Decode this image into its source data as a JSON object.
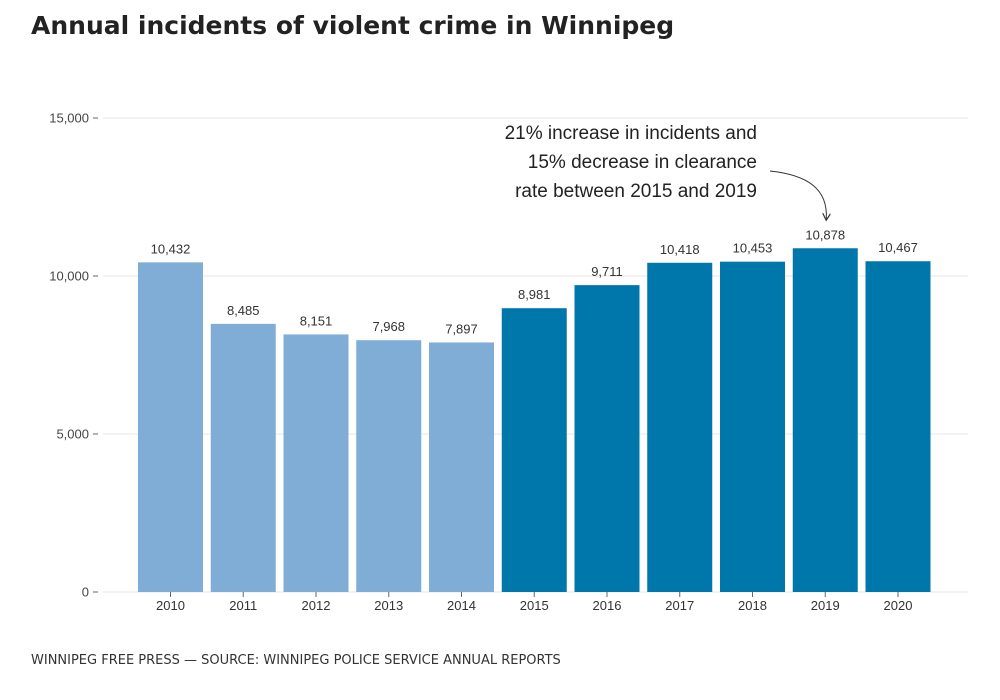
{
  "title": "Annual incidents of violent crime in Winnipeg",
  "footer": "WINNIPEG FREE PRESS — SOURCE: WINNIPEG POLICE SERVICE ANNUAL REPORTS",
  "chart_data": {
    "type": "bar",
    "categories": [
      "2010",
      "2011",
      "2012",
      "2013",
      "2014",
      "2015",
      "2016",
      "2017",
      "2018",
      "2019",
      "2020"
    ],
    "values": [
      10432,
      8485,
      8151,
      7968,
      7897,
      8981,
      9711,
      10418,
      10453,
      10878,
      10467
    ],
    "data_labels": [
      "10,432",
      "8,485",
      "8,151",
      "7,968",
      "7,897",
      "8,981",
      "9,711",
      "10,418",
      "10,453",
      "10,878",
      "10,467"
    ],
    "ylim": [
      0,
      15000
    ],
    "yticks": [
      0,
      5000,
      10000,
      15000
    ],
    "ytick_labels": [
      "0",
      "5,000",
      "10,000",
      "15,000"
    ],
    "xlabel": "",
    "ylabel": "",
    "grid": true,
    "colors": {
      "light": "#7fadd6",
      "dark": "#0077aa"
    },
    "highlight_from": "2015",
    "annotation": {
      "lines": [
        "21% increase in incidents and",
        "15% decrease in clearance",
        "rate between 2015 and 2019"
      ],
      "target": "2019"
    }
  }
}
